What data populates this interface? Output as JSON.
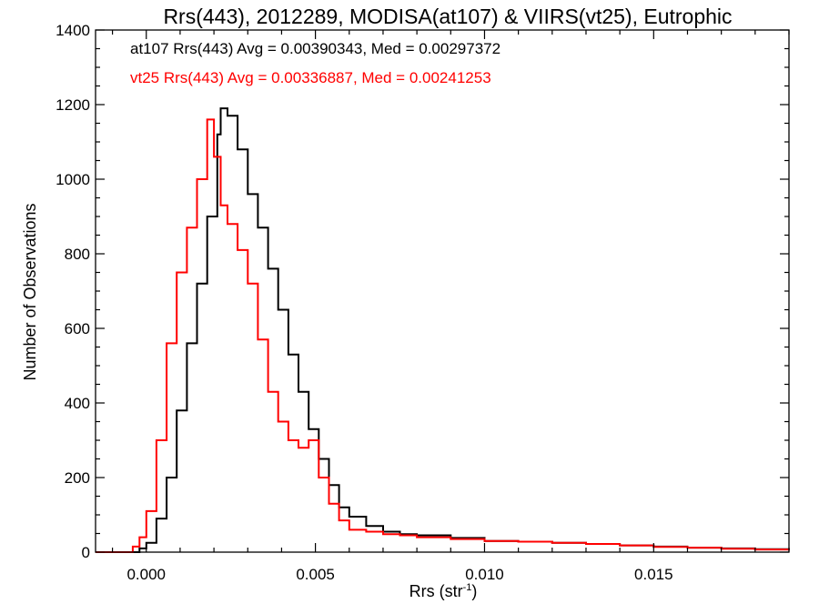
{
  "chart_data": {
    "type": "line",
    "title": "Rrs(443), 2012289, MODISA(at107) & VIIRS(vt25), Eutrophic",
    "xlabel_base": "Rrs (str",
    "xlabel_sup": "-1",
    "xlabel_end": ")",
    "ylabel": "Number of Observations",
    "xlim": [
      -0.0015,
      0.019
    ],
    "ylim": [
      0,
      1400
    ],
    "x_ticks": [
      {
        "value": 0.0,
        "label": "0.000"
      },
      {
        "value": 0.005,
        "label": "0.005"
      },
      {
        "value": 0.01,
        "label": "0.010"
      },
      {
        "value": 0.015,
        "label": "0.015"
      }
    ],
    "y_ticks": [
      {
        "value": 0,
        "label": "0"
      },
      {
        "value": 200,
        "label": "200"
      },
      {
        "value": 400,
        "label": "400"
      },
      {
        "value": 600,
        "label": "600"
      },
      {
        "value": 800,
        "label": "800"
      },
      {
        "value": 1000,
        "label": "1000"
      },
      {
        "value": 1200,
        "label": "1200"
      },
      {
        "value": 1400,
        "label": "1400"
      }
    ],
    "annotations": [
      {
        "text": "at107 Rrs(443) Avg = 0.00390343, Med = 0.00297372",
        "color": "#000000"
      },
      {
        "text": "vt25 Rrs(443) Avg = 0.00336887, Med = 0.00241253",
        "color": "#ff0000"
      }
    ],
    "series": [
      {
        "color": "#000000",
        "x": [
          -0.0015,
          -0.0005,
          -0.0002,
          0.0,
          0.0003,
          0.0006,
          0.0009,
          0.0012,
          0.0015,
          0.0018,
          0.0021,
          0.0022,
          0.0024,
          0.0027,
          0.003,
          0.0033,
          0.0036,
          0.0039,
          0.0042,
          0.0045,
          0.0048,
          0.0051,
          0.0054,
          0.0057,
          0.006,
          0.0065,
          0.007,
          0.0075,
          0.008,
          0.009,
          0.01,
          0.011,
          0.012,
          0.013,
          0.014,
          0.015,
          0.016,
          0.017,
          0.018,
          0.019
        ],
        "y": [
          0,
          0,
          10,
          25,
          90,
          200,
          380,
          560,
          720,
          900,
          1120,
          1190,
          1170,
          1080,
          960,
          870,
          760,
          650,
          530,
          430,
          330,
          250,
          180,
          120,
          95,
          70,
          55,
          48,
          45,
          38,
          30,
          28,
          25,
          22,
          18,
          15,
          12,
          10,
          8,
          5
        ]
      },
      {
        "color": "#ff0000",
        "x": [
          -0.0015,
          -0.0007,
          -0.0004,
          -0.0002,
          0.0,
          0.0003,
          0.0006,
          0.0009,
          0.0012,
          0.0015,
          0.0018,
          0.002,
          0.0022,
          0.0024,
          0.0027,
          0.003,
          0.0033,
          0.0036,
          0.0039,
          0.0042,
          0.0045,
          0.0048,
          0.0051,
          0.0054,
          0.0057,
          0.006,
          0.0065,
          0.007,
          0.0075,
          0.008,
          0.009,
          0.01,
          0.011,
          0.012,
          0.013,
          0.014,
          0.015,
          0.016,
          0.017,
          0.018,
          0.019
        ],
        "y": [
          0,
          0,
          15,
          40,
          110,
          300,
          560,
          750,
          870,
          1000,
          1160,
          1060,
          930,
          880,
          810,
          720,
          570,
          430,
          350,
          300,
          280,
          300,
          200,
          130,
          85,
          60,
          55,
          48,
          45,
          40,
          35,
          30,
          28,
          25,
          22,
          18,
          14,
          12,
          9,
          7,
          5
        ]
      }
    ]
  }
}
